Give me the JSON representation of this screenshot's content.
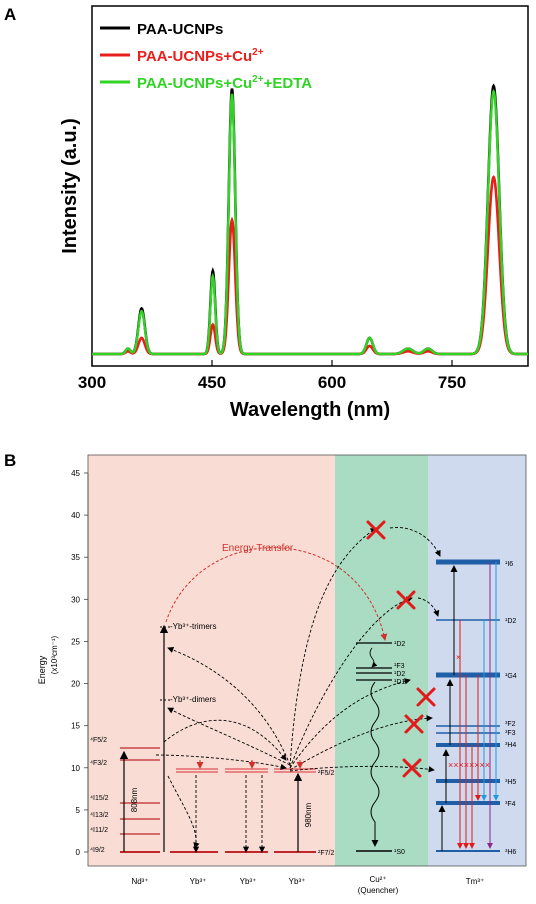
{
  "panel_a": {
    "label": "A",
    "xlabel": "Wavelength (nm)",
    "ylabel": "Intensity (a.u.)",
    "legend": [
      {
        "base": "PAA-UCNPs",
        "sup": "",
        "tail": "",
        "color": "#000000"
      },
      {
        "base": "PAA-UCNPs+Cu",
        "sup": "2+",
        "tail": "",
        "color": "#e8201c"
      },
      {
        "base": "PAA-UCNPs+Cu",
        "sup": "2+",
        "tail": "+EDTA",
        "color": "#31d424"
      }
    ]
  },
  "chart_data": [
    {
      "type": "line",
      "title": "",
      "xlabel": "Wavelength (nm)",
      "ylabel": "Intensity (a.u.)",
      "xlim": [
        300,
        845
      ],
      "ylim": [
        0,
        1.0
      ],
      "xticks": [
        300,
        450,
        600,
        750
      ],
      "legend_position": "top-left",
      "peaks_nm": [
        345,
        362,
        451,
        475,
        647,
        695,
        720,
        802
      ],
      "peak_widths_nm": [
        3,
        4,
        3,
        4,
        4,
        6,
        5,
        7
      ],
      "baseline": 0.03,
      "series": [
        {
          "name": "PAA-UCNPs",
          "color": "#000000",
          "peak_heights": [
            0.02,
            0.17,
            0.31,
            0.99,
            0.06,
            0.02,
            0.02,
            1.0
          ]
        },
        {
          "name": "PAA-UCNPs+Cu2+",
          "color": "#e8201c",
          "peak_heights": [
            0.01,
            0.06,
            0.11,
            0.5,
            0.03,
            0.01,
            0.01,
            0.66
          ]
        },
        {
          "name": "PAA-UCNPs+Cu2++EDTA",
          "color": "#31d424",
          "peak_heights": [
            0.02,
            0.16,
            0.29,
            0.97,
            0.06,
            0.02,
            0.02,
            0.98
          ]
        }
      ]
    },
    {
      "type": "diagram",
      "title": "",
      "ylabel": "Energy",
      "ylabel_unit": "(x10³cm⁻¹)",
      "ylim": [
        0,
        45
      ],
      "yticks": [
        0,
        5,
        10,
        15,
        20,
        25,
        30,
        35,
        40,
        45
      ]
    }
  ],
  "panel_b": {
    "label": "B",
    "energy_label": "Energy",
    "energy_unit": "(x10³cm⁻¹)",
    "ion_labels": [
      "Nd³⁺",
      "Yb³⁺",
      "Yb³⁺",
      "Yb³⁺",
      "Cu²⁺",
      "Tm³⁺"
    ],
    "quencher_label": "(Quencher)",
    "energy_transfer_label": "Energy Transfer",
    "trimers_label": "-Yb³⁺-trimers",
    "dimers_label": "-Yb³⁺-dimers",
    "wl_808": "808nm",
    "wl_980": "980nm",
    "nd_levels": [
      "⁴F5/2",
      "⁴F3/2",
      "⁴I15/2",
      "⁴I13/2",
      "⁴I11/2",
      "⁴I9/2"
    ],
    "yb_levels": [
      "²F5/2",
      "²F7/2"
    ],
    "cu_levels": [
      "¹D2",
      "¹F3",
      "¹D2",
      "¹D1",
      "¹S0"
    ],
    "tm_levels": [
      "¹I6",
      "¹D2",
      "¹G4",
      "³F2",
      "³F3",
      "³H4",
      "³H5",
      "³F4",
      "³H6"
    ],
    "colors": {
      "nd_bg": "#f9ddd4",
      "cu_bg": "#a9dcc3",
      "tm_bg": "#cfdaef",
      "nd_level": "#c0262a",
      "yb_level": "#e6686c",
      "tm_level": "#1f5fa8",
      "cross": "#e11a1a"
    }
  }
}
